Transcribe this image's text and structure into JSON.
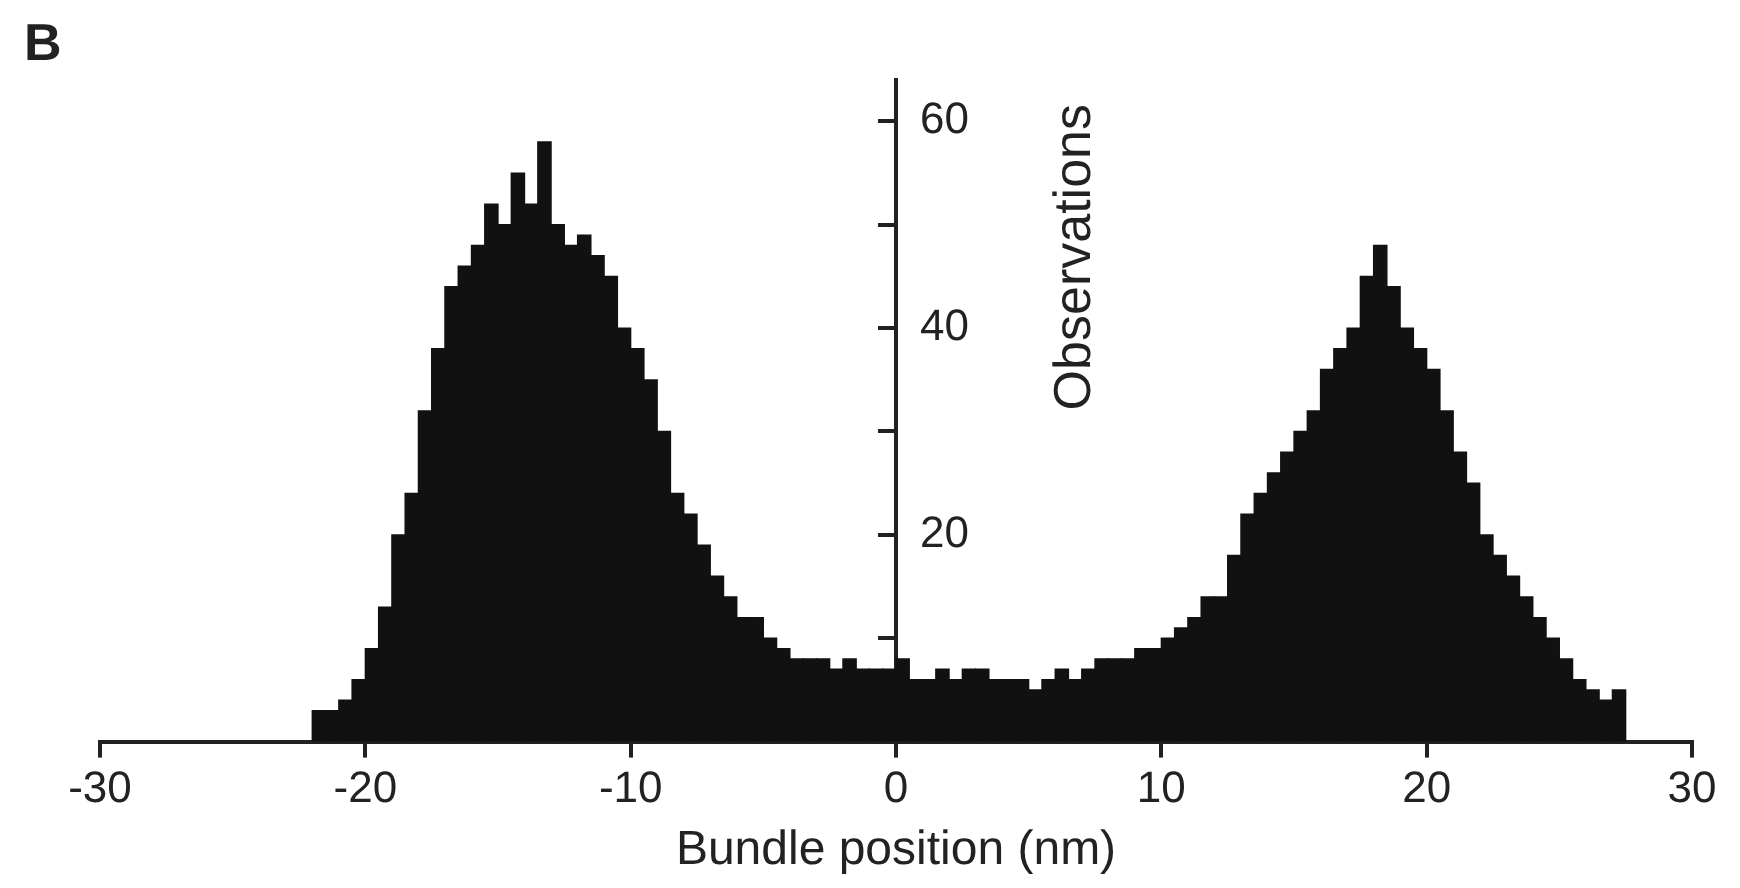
{
  "chart_data": {
    "type": "histogram",
    "xlabel": "Bundle position (nm)",
    "ylabel": "Observations",
    "annotations": [
      "B"
    ],
    "bins": [
      -22,
      -21.5,
      -21,
      -20.5,
      -20,
      -19.5,
      -19,
      -18.5,
      -18,
      -17.5,
      -17,
      -16.5,
      -16,
      -15.5,
      -15,
      -14.5,
      -14,
      -13.5,
      -13,
      -12.5,
      -12,
      -11.5,
      -11,
      -10.5,
      -10,
      -9.5,
      -9,
      -8.5,
      -8,
      -7.5,
      -7,
      -6.5,
      -6,
      -5.5,
      -5,
      -4.5,
      -4,
      -3.5,
      -3,
      -2.5,
      -2,
      -1.5,
      -1,
      -0.5,
      0,
      0.5,
      1,
      1.5,
      2,
      2.5,
      3,
      3.5,
      4,
      4.5,
      5,
      5.5,
      6,
      6.5,
      7,
      7.5,
      8,
      8.5,
      9,
      9.5,
      10,
      10.5,
      11,
      11.5,
      12,
      12.5,
      13,
      13.5,
      14,
      14.5,
      15,
      15.5,
      16,
      16.5,
      17,
      17.5,
      18,
      18.5,
      19,
      19.5,
      20,
      20.5,
      21,
      21.5,
      22,
      22.5,
      23,
      23.5,
      24,
      24.5,
      25,
      25.5,
      26,
      26.5,
      27,
      27.5
    ],
    "values": [
      3,
      3,
      4,
      6,
      9,
      13,
      20,
      24,
      32,
      38,
      44,
      46,
      48,
      52,
      50,
      55,
      52,
      58,
      50,
      48,
      49,
      47,
      45,
      40,
      38,
      35,
      30,
      24,
      22,
      19,
      16,
      14,
      12,
      12,
      10,
      9,
      8,
      8,
      8,
      7,
      8,
      7,
      7,
      7,
      8,
      6,
      6,
      7,
      6,
      7,
      7,
      6,
      6,
      6,
      5,
      6,
      7,
      6,
      7,
      8,
      8,
      8,
      9,
      9,
      10,
      11,
      12,
      14,
      14,
      18,
      22,
      24,
      26,
      28,
      30,
      32,
      36,
      38,
      40,
      45,
      48,
      44,
      40,
      38,
      36,
      32,
      28,
      25,
      20,
      18,
      16,
      14,
      12,
      10,
      8,
      6,
      5,
      4,
      5
    ],
    "color": "#111111",
    "xlim": [
      -30,
      30
    ],
    "xticks": [
      -30,
      -20,
      -10,
      0,
      10,
      20,
      30
    ],
    "ylim": [
      0,
      64
    ],
    "yticks": [
      {
        "value": 10,
        "label": null
      },
      20,
      {
        "value": 30,
        "label": null
      },
      40,
      {
        "value": 50,
        "label": null
      },
      60
    ],
    "grid": false,
    "legend": false
  }
}
